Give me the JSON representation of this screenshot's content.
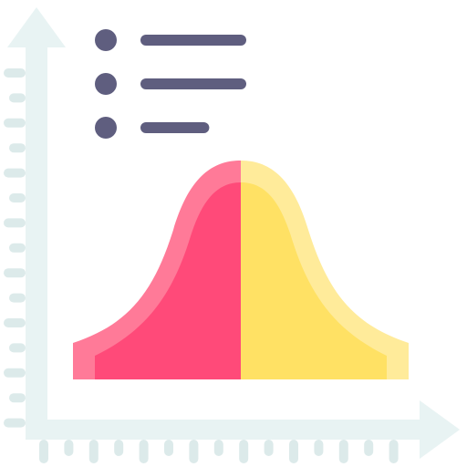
{
  "icon": {
    "name": "bell-curve-chart-icon",
    "colors": {
      "axis": "#E8F3F3",
      "tick": "#DCEAEA",
      "bullet": "#5F5E7F",
      "left_half_outer": "#FF7A98",
      "left_half_inner": "#FF4A79",
      "right_half_outer": "#FFEB9A",
      "right_half_inner": "#FFE164"
    }
  },
  "legend": {
    "items": [
      {
        "marker": "dot",
        "line_fraction": 1.0
      },
      {
        "marker": "dot",
        "line_fraction": 1.0
      },
      {
        "marker": "dot",
        "line_fraction": 0.65
      }
    ]
  },
  "axes": {
    "y_ticks": 15,
    "x_ticks": 15
  }
}
